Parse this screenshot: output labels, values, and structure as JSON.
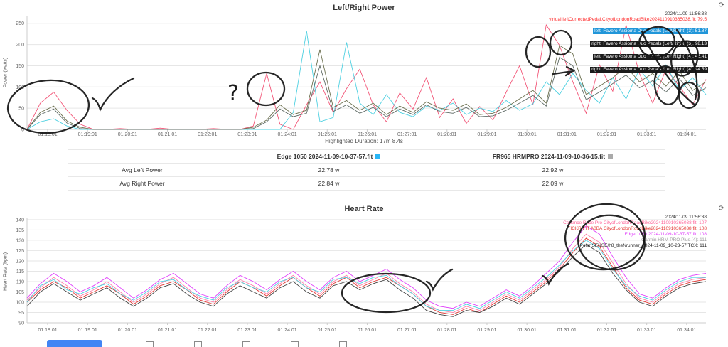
{
  "power_chart": {
    "refresh_icon": "⟳",
    "highlighted_duration": "Highlighted Duration: 17m 8.4s",
    "legend": [
      {
        "text": "2024/11/09 11:56:38",
        "color": "#333333",
        "bg": ""
      },
      {
        "text": "virtual:leftCorrectedPedal.CityofLondonRoadBike2024110910365038.fit: 79.5",
        "color": "#ff2a2a",
        "bg": ""
      },
      {
        "text": "left: Favero Assioma Duo Pedals (Left/Right) (3): 51.87",
        "color": "#ffffff",
        "bg": "#2196d9"
      },
      {
        "text": "right: Favero Assioma Duo Pedals (Left/Right) (3): 28.13",
        "color": "#ffffff",
        "bg": "#1b1b1b"
      },
      {
        "text": "left: Favero Assioma Duo Pedals (Left/Right) (4): 46.41",
        "color": "#ffffff",
        "bg": "#1b1b1b"
      },
      {
        "text": "right: Favero Assioma Duo Pedals (Left/Right) (4): 44.59",
        "color": "#ffffff",
        "bg": "#1b1b1b"
      }
    ]
  },
  "hr_chart": {
    "refresh_icon": "⟳",
    "legend": [
      {
        "text": "2024/11/09 11:56:38",
        "color": "#333333",
        "bg": ""
      },
      {
        "text": "Cadence Race Pro CityofLondonRoadBike2024110910365038.fit: 107",
        "color": "#ff6699",
        "bg": ""
      },
      {
        "text": "TICKR FIT A0BA CityofLondonRoadBike2024110910365038.fit: 108",
        "color": "#e53935",
        "bg": ""
      },
      {
        "text": "Edge 1050 2024-11-09-10-37-57.fit: 108",
        "color": "#e040fb",
        "bg": ""
      },
      {
        "text": "Garmin HRM-PRO Plus (4): 111",
        "color": "#9e9e9e",
        "bg": ""
      },
      {
        "text": "Polar SENSE/h8_theNrunner_2024-11-09_10-23-57.TCX: 111",
        "color": "#222222",
        "bg": ""
      }
    ]
  },
  "summary_table": {
    "columns": [
      {
        "label": "Edge 1050 2024-11-09-10-37-57.fit",
        "swatch": "#29b6f6"
      },
      {
        "label": "FR965 HRMPRO 2024-11-09-10-36-15.fit",
        "swatch": "#aaaaaa"
      }
    ],
    "rows": [
      {
        "label": "Avg Left Power",
        "values": [
          "22.78 w",
          "22.92 w"
        ]
      },
      {
        "label": "Avg Right Power",
        "values": [
          "22.84 w",
          "22.09 w"
        ]
      }
    ]
  },
  "hand_annotations": {
    "power": [
      "circle-left-burst",
      "checkmark",
      "question-mark",
      "circle-mid-spike",
      "two-circles-01:30",
      "right-arrow",
      "scribble-circles-cluster-right"
    ],
    "heart_rate": [
      "circle-01:26-region",
      "checkmark",
      "checkmark",
      "circle-peak-region"
    ]
  },
  "bottom_bar": {
    "button_label": "",
    "checkboxes": [
      "",
      "",
      "",
      "",
      ""
    ]
  },
  "chart_data": [
    {
      "type": "line",
      "title": "Left/Right Power",
      "xlabel": "",
      "ylabel": "Power (watts)",
      "ylim": [
        0,
        268
      ],
      "yticks": [
        0,
        50,
        100,
        150,
        200,
        250
      ],
      "grid": "horizontal",
      "legend_position": "top-right",
      "xticklabels": [
        "01:18:01",
        "01:19:01",
        "01:20:01",
        "01:21:01",
        "01:22:01",
        "01:23:01",
        "01:24:01",
        "01:25:01",
        "01:26:01",
        "01:27:01",
        "01:28:01",
        "01:29:01",
        "01:30:01",
        "01:31:01",
        "01:32:01",
        "01:33:01",
        "01:34:01"
      ],
      "xtick_indices": [
        1.55,
        4.55,
        7.55,
        10.55,
        13.55,
        16.55,
        19.55,
        22.55,
        25.55,
        28.55,
        31.55,
        34.55,
        37.55,
        40.55,
        43.55,
        46.55,
        49.55
      ],
      "series": [
        {
          "name": "virtual:leftCorrectedPedal.CityofLondonRoadBike2024110910365038.fit",
          "color": "#f25577",
          "values": [
            0,
            62,
            88,
            45,
            12,
            0,
            0,
            2,
            0,
            0,
            3,
            0,
            0,
            0,
            2,
            0,
            0,
            8,
            132,
            12,
            0,
            58,
            112,
            40,
            96,
            142,
            58,
            18,
            86,
            48,
            122,
            28,
            72,
            14,
            54,
            22,
            88,
            150,
            58,
            246,
            198,
            112,
            38,
            152,
            90,
            246,
            132,
            62,
            142,
            102,
            58,
            118
          ]
        },
        {
          "name": "Edge 1050 2024-11-09-10-37-57.fit",
          "color": "#4dd0e1",
          "values": [
            0,
            18,
            25,
            8,
            0,
            0,
            0,
            0,
            0,
            0,
            0,
            0,
            0,
            0,
            0,
            0,
            0,
            0,
            0,
            0,
            40,
            232,
            18,
            28,
            205,
            62,
            35,
            82,
            40,
            30,
            55,
            45,
            62,
            35,
            50,
            42,
            68,
            45,
            60,
            112,
            82,
            132,
            92,
            62,
            122,
            72,
            142,
            102,
            152,
            92,
            122,
            82
          ]
        },
        {
          "name": "left: Favero Assioma Duo Pedals (Left/Right)",
          "color": "#6b6f4e",
          "values": [
            0,
            40,
            55,
            20,
            5,
            0,
            0,
            0,
            0,
            0,
            0,
            0,
            0,
            0,
            0,
            0,
            0,
            5,
            22,
            58,
            35,
            45,
            188,
            52,
            68,
            45,
            62,
            35,
            55,
            40,
            65,
            50,
            45,
            60,
            35,
            38,
            52,
            72,
            92,
            62,
            198,
            178,
            82,
            102,
            122,
            148,
            112,
            132,
            102,
            138,
            92,
            112
          ]
        },
        {
          "name": "right: Favero Assioma Duo Pedals (Left/Right)",
          "color": "#5f6b66",
          "values": [
            0,
            35,
            48,
            15,
            2,
            0,
            0,
            0,
            0,
            0,
            0,
            0,
            0,
            0,
            0,
            0,
            0,
            2,
            18,
            48,
            30,
            38,
            150,
            42,
            58,
            38,
            52,
            30,
            48,
            35,
            58,
            42,
            38,
            52,
            30,
            32,
            45,
            62,
            80,
            55,
            170,
            150,
            70,
            88,
            108,
            128,
            98,
            115,
            88,
            120,
            80,
            98
          ]
        }
      ]
    },
    {
      "type": "line",
      "title": "Heart Rate",
      "xlabel": "",
      "ylabel": "Heart Rate (bpm)",
      "ylim": [
        90,
        141
      ],
      "yticks": [
        90,
        95,
        100,
        105,
        110,
        115,
        120,
        125,
        130,
        135,
        140
      ],
      "grid": "horizontal",
      "legend_position": "top-right",
      "xticklabels": [
        "01:18:01",
        "01:19:01",
        "01:20:01",
        "01:21:01",
        "01:22:01",
        "01:23:01",
        "01:24:01",
        "01:25:01",
        "01:26:01",
        "01:27:01",
        "01:28:01",
        "01:29:01",
        "01:30:01",
        "01:31:01",
        "01:32:01",
        "01:33:01",
        "01:34:01"
      ],
      "xtick_indices": [
        1.55,
        4.55,
        7.55,
        10.55,
        13.55,
        16.55,
        19.55,
        22.55,
        25.55,
        28.55,
        31.55,
        34.55,
        37.55,
        40.55,
        43.55,
        46.55,
        49.55
      ],
      "series": [
        {
          "name": "Cadence Race Pro CityofLondonRoadBike2024110910365038.fit",
          "color": "#ff80ab",
          "values": [
            101,
            107,
            112,
            108,
            103,
            106,
            110,
            105,
            100,
            104,
            109,
            112,
            107,
            102,
            100,
            106,
            111,
            108,
            104,
            109,
            113,
            108,
            104,
            110,
            113,
            108,
            111,
            114,
            109,
            105,
            99,
            96,
            95,
            98,
            96,
            100,
            104,
            101,
            106,
            111,
            117,
            126,
            133,
            129,
            119,
            109,
            102,
            100,
            105,
            109,
            111,
            112
          ]
        },
        {
          "name": "TICKR FIT A0BA CityofLondonRoadBike2024110910365038.fit",
          "color": "#e53935",
          "values": [
            100,
            106,
            110,
            107,
            102,
            105,
            108,
            104,
            99,
            103,
            108,
            110,
            106,
            101,
            99,
            105,
            110,
            107,
            103,
            108,
            112,
            107,
            103,
            109,
            112,
            107,
            110,
            112,
            108,
            104,
            98,
            95,
            94,
            97,
            95,
            99,
            103,
            100,
            105,
            110,
            116,
            124,
            131,
            127,
            117,
            107,
            101,
            99,
            104,
            108,
            110,
            111
          ]
        },
        {
          "name": "Edge 1050 2024-11-09-10-37-57.fit",
          "color": "#e040fb",
          "values": [
            102,
            109,
            114,
            110,
            105,
            108,
            112,
            107,
            102,
            106,
            111,
            114,
            109,
            104,
            102,
            108,
            113,
            110,
            106,
            111,
            115,
            110,
            106,
            112,
            115,
            110,
            113,
            116,
            111,
            107,
            101,
            98,
            97,
            100,
            98,
            102,
            106,
            103,
            108,
            114,
            120,
            129,
            137,
            133,
            122,
            112,
            104,
            102,
            107,
            111,
            113,
            114
          ]
        },
        {
          "name": "Garmin HRM-PRO Plus (4)",
          "color": "#4dd0e1",
          "values": [
            100,
            108,
            111,
            106,
            104,
            107,
            109,
            104,
            101,
            105,
            110,
            111,
            106,
            103,
            101,
            107,
            110,
            107,
            105,
            110,
            112,
            107,
            105,
            111,
            112,
            109,
            112,
            113,
            108,
            104,
            98,
            96,
            96,
            99,
            97,
            101,
            105,
            102,
            107,
            112,
            118,
            125,
            130,
            126,
            116,
            108,
            103,
            101,
            106,
            110,
            112,
            112
          ]
        },
        {
          "name": "Polar SENSE/h8_theNrunner_2024-11-09_10-23-57.TCX",
          "color": "#444444",
          "values": [
            98,
            105,
            109,
            105,
            101,
            104,
            107,
            102,
            98,
            102,
            107,
            109,
            104,
            100,
            98,
            104,
            108,
            105,
            102,
            107,
            110,
            105,
            102,
            108,
            110,
            106,
            109,
            111,
            106,
            102,
            96,
            94,
            93,
            96,
            95,
            98,
            102,
            99,
            104,
            109,
            115,
            122,
            128,
            124,
            114,
            106,
            100,
            98,
            103,
            107,
            109,
            110
          ]
        }
      ]
    }
  ]
}
